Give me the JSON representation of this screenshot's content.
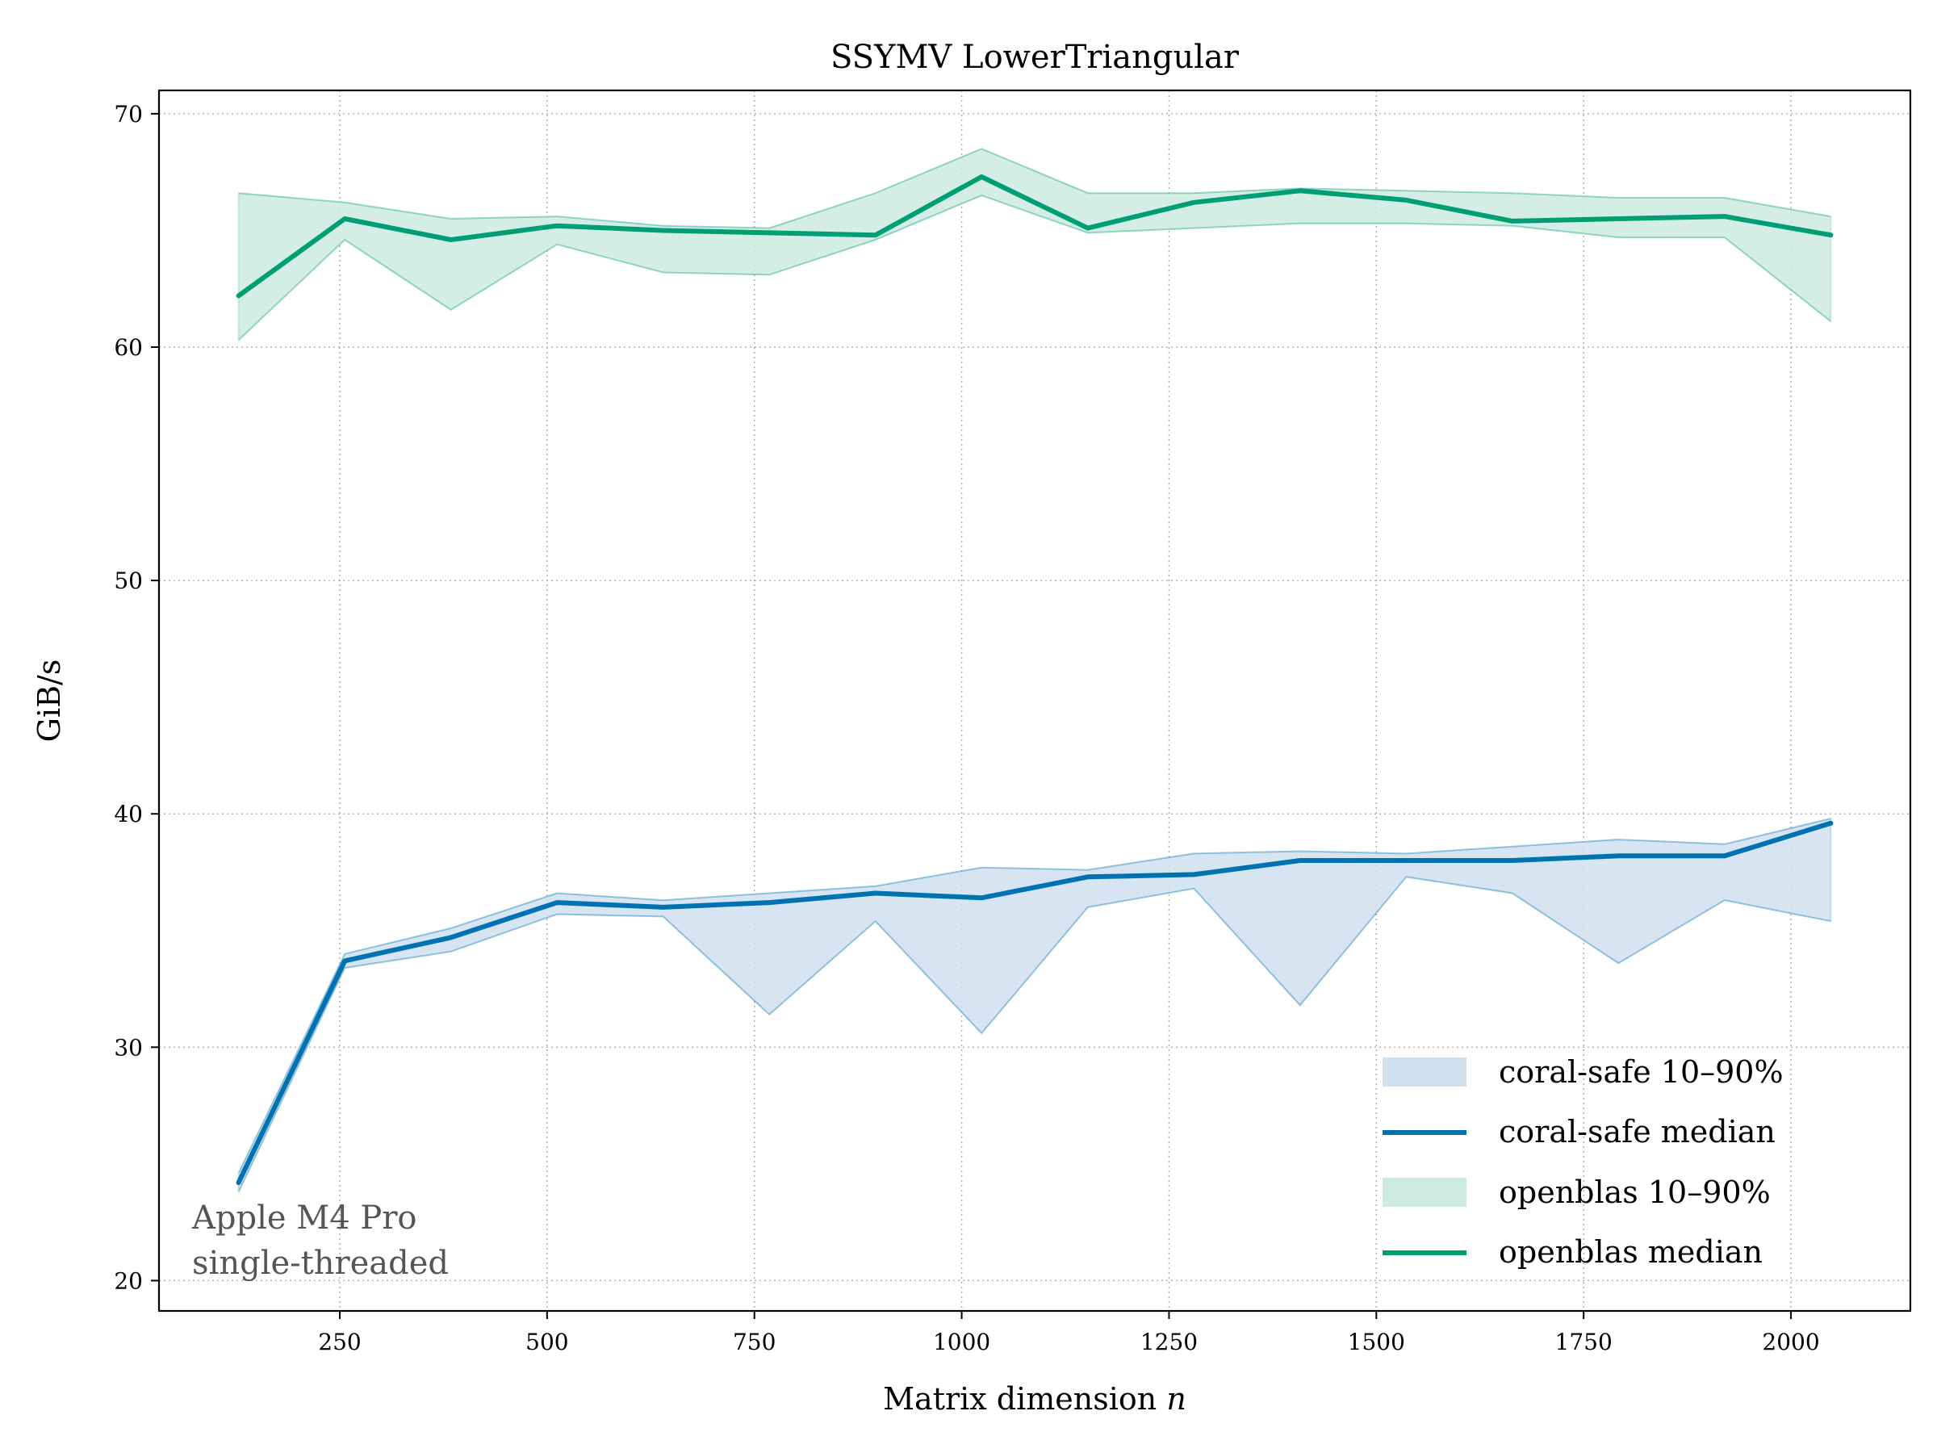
{
  "chart_data": {
    "type": "line",
    "title": "SSYMV LowerTriangular",
    "xlabel": "Matrix dimension",
    "xlabel_var": "n",
    "ylabel": "GiB/s",
    "xlim": [
      32,
      2144
    ],
    "ylim": [
      18.7,
      71.0
    ],
    "xticks": [
      250,
      500,
      750,
      1000,
      1250,
      1500,
      1750,
      2000
    ],
    "yticks": [
      20,
      30,
      40,
      50,
      60,
      70
    ],
    "grid": true,
    "x": [
      128,
      256,
      384,
      512,
      640,
      768,
      896,
      1024,
      1152,
      1280,
      1408,
      1536,
      1664,
      1792,
      1920,
      2048
    ],
    "series": [
      {
        "name": "coral-safe median",
        "band_name": "coral-safe 10–90%",
        "color": "#0072b2",
        "band_color": "#cfe0ee",
        "median": [
          24.2,
          33.7,
          34.7,
          36.2,
          36.0,
          36.2,
          36.6,
          36.4,
          37.3,
          37.4,
          38.0,
          38.0,
          38.0,
          38.2,
          38.2,
          39.6
        ],
        "p10": [
          23.8,
          33.4,
          34.1,
          35.7,
          35.6,
          31.4,
          35.4,
          30.6,
          36.0,
          36.8,
          31.8,
          37.3,
          36.6,
          33.6,
          36.3,
          35.4
        ],
        "p90": [
          24.6,
          34.0,
          35.1,
          36.6,
          36.3,
          36.6,
          36.9,
          37.7,
          37.6,
          38.3,
          38.4,
          38.3,
          38.6,
          38.9,
          38.7,
          39.8
        ]
      },
      {
        "name": "openblas median",
        "band_name": "openblas 10–90%",
        "color": "#009e73",
        "band_color": "#cdebe0",
        "median": [
          62.2,
          65.5,
          64.6,
          65.2,
          65.0,
          64.9,
          64.8,
          67.3,
          65.1,
          66.2,
          66.7,
          66.3,
          65.4,
          65.5,
          65.6,
          64.8
        ],
        "p10": [
          60.3,
          64.6,
          61.6,
          64.4,
          63.2,
          63.1,
          64.6,
          66.5,
          64.9,
          65.1,
          65.3,
          65.3,
          65.2,
          64.7,
          64.7,
          61.1
        ],
        "p90": [
          66.6,
          66.2,
          65.5,
          65.6,
          65.2,
          65.1,
          66.6,
          68.5,
          66.6,
          66.6,
          66.8,
          66.7,
          66.6,
          66.4,
          66.4,
          65.6
        ]
      }
    ],
    "legend_position": "lower right",
    "annotation": [
      "Apple M4 Pro",
      "single-threaded"
    ]
  }
}
